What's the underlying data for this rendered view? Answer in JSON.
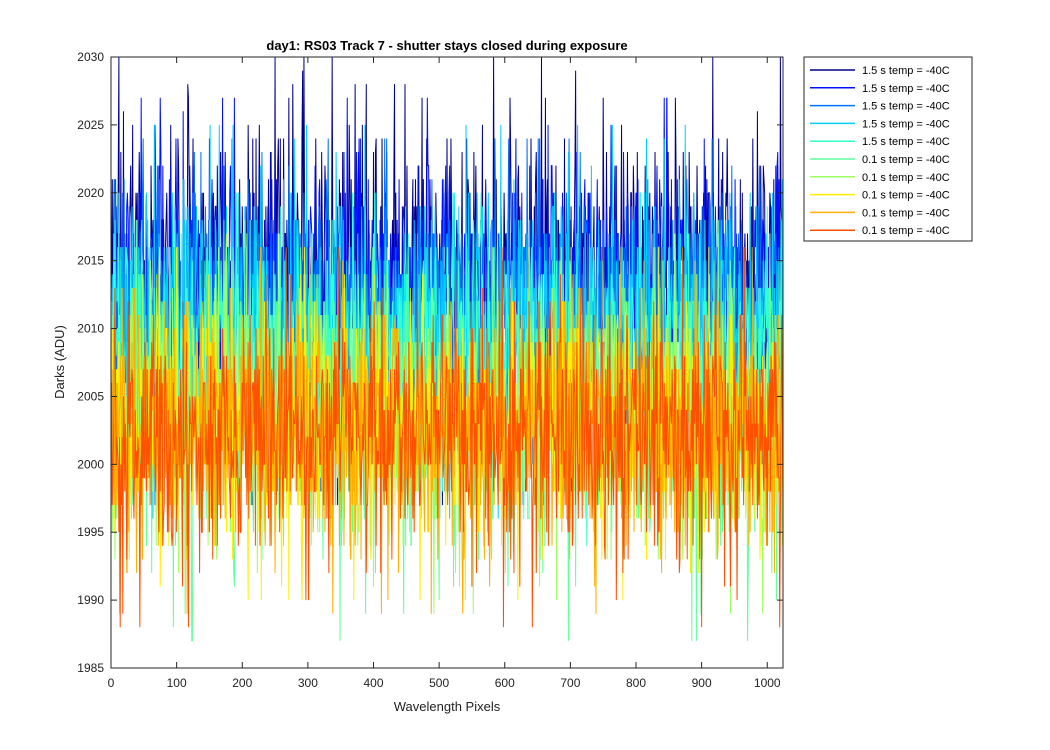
{
  "chart_data": {
    "type": "line",
    "title": "day1: RS03  Track 7 - shutter stays closed during exposure",
    "xlabel": "Wavelength Pixels",
    "ylabel": "Darks (ADU)",
    "xlim": [
      0,
      1024
    ],
    "ylim": [
      1985,
      2030
    ],
    "xticks": [
      0,
      100,
      200,
      300,
      400,
      500,
      600,
      700,
      800,
      900,
      1000
    ],
    "yticks": [
      1985,
      1990,
      1995,
      2000,
      2005,
      2010,
      2015,
      2020,
      2025,
      2030
    ],
    "grid": false,
    "legend_position": "outside-top-right",
    "x_count": 1024,
    "series": [
      {
        "name": "1.5 s temp = -40C",
        "color": "#00008f",
        "mean": 2014.0,
        "min": 1997,
        "max": 2030
      },
      {
        "name": "1.5 s temp = -40C",
        "color": "#0010ff",
        "mean": 2013.0,
        "min": 1998,
        "max": 2027
      },
      {
        "name": "1.5 s temp = -40C",
        "color": "#0070ff",
        "mean": 2011.5,
        "min": 1997,
        "max": 2024
      },
      {
        "name": "1.5 s temp = -40C",
        "color": "#00cfff",
        "mean": 2010.0,
        "min": 1996,
        "max": 2025
      },
      {
        "name": "1.5 s temp = -40C",
        "color": "#30ffcf",
        "mean": 2008.5,
        "min": 1994,
        "max": 2020
      },
      {
        "name": "0.1 s temp = -40C",
        "color": "#60ff9f",
        "mean": 2004.0,
        "min": 1987,
        "max": 2018
      },
      {
        "name": "0.1 s temp = -40C",
        "color": "#9fff60",
        "mean": 2003.5,
        "min": 1989,
        "max": 2017
      },
      {
        "name": "0.1 s temp = -40C",
        "color": "#ffef00",
        "mean": 2003.0,
        "min": 1990,
        "max": 2016
      },
      {
        "name": "0.1 s temp = -40C",
        "color": "#ffaf00",
        "mean": 2002.5,
        "min": 1989,
        "max": 2016
      },
      {
        "name": "0.1 s temp = -40C",
        "color": "#ff5000",
        "mean": 2002.5,
        "min": 1988,
        "max": 2016
      }
    ]
  }
}
